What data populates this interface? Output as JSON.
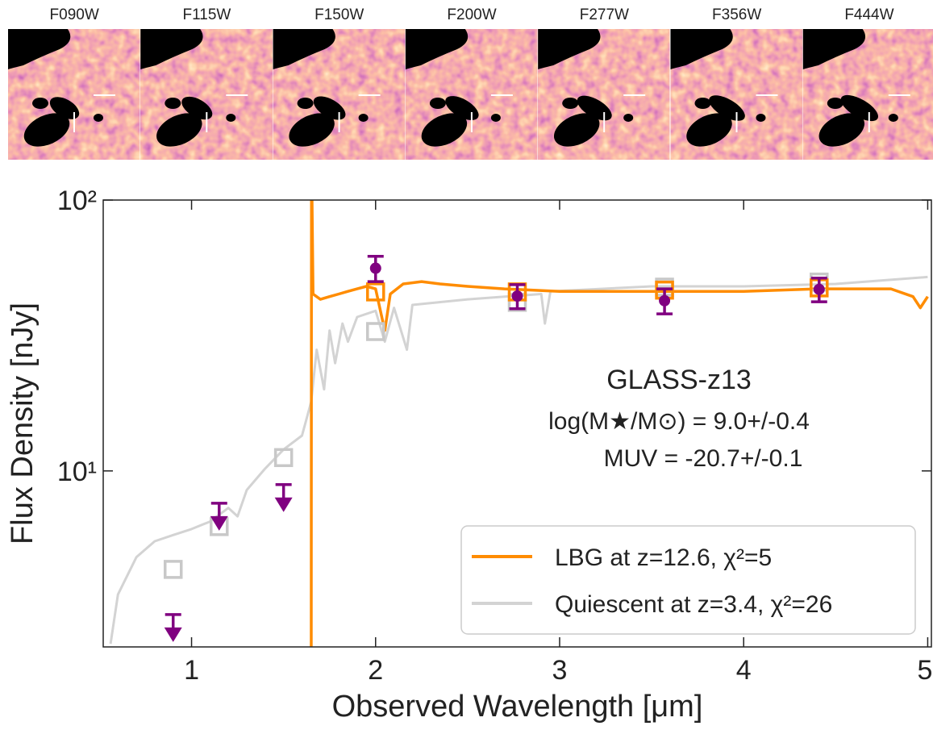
{
  "stamps": {
    "filters": [
      "F090W",
      "F115W",
      "F150W",
      "F200W",
      "F277W",
      "F356W",
      "F444W"
    ]
  },
  "chart_data": {
    "type": "line",
    "xlabel": "Observed Wavelength [μm]",
    "ylabel": "Flux Density [nJy]",
    "xlim": [
      0.52,
      5.02
    ],
    "xticks": [
      1,
      2,
      3,
      4,
      5
    ],
    "ylim": [
      2.24,
      100
    ],
    "log_y": true,
    "yticks": [
      {
        "value": 10,
        "label": "10¹"
      },
      {
        "value": 100,
        "label": "10²"
      }
    ],
    "annotations": [
      "GLASS-z13",
      "log(M★/M⊙) = 9.0+/-0.4",
      "MUV = -20.7+/-0.1"
    ],
    "legend": "lower right",
    "series": [
      {
        "name": "LBG at z=12.6, χ²=5",
        "color": "#ff8c00",
        "x": [
          1.65,
          1.652,
          1.66,
          1.7,
          1.75,
          1.8,
          1.85,
          1.9,
          1.95,
          2.0,
          2.03,
          2.05,
          2.08,
          2.15,
          2.25,
          2.35,
          2.5,
          2.7,
          3.0,
          3.3,
          3.6,
          4.0,
          4.4,
          4.8,
          4.92,
          4.96,
          5.0
        ],
        "values": [
          1.0,
          150,
          45,
          43,
          44,
          45,
          46,
          47,
          48,
          47,
          38,
          33,
          45,
          49,
          50,
          49,
          48,
          47,
          46,
          46,
          46,
          46,
          47,
          47,
          44,
          40,
          44
        ]
      },
      {
        "name": "Quiescent at z=3.4, χ²=26",
        "color": "#d3d3d3",
        "x": [
          0.56,
          0.6,
          0.7,
          0.8,
          0.9,
          1.0,
          1.1,
          1.2,
          1.25,
          1.3,
          1.4,
          1.5,
          1.6,
          1.65,
          1.68,
          1.72,
          1.75,
          1.78,
          1.82,
          1.85,
          1.9,
          2.0,
          2.05,
          2.1,
          2.17,
          2.2,
          2.5,
          2.9,
          2.92,
          2.95,
          3.5,
          4.0,
          4.5,
          5.0
        ],
        "values": [
          2.3,
          3.5,
          4.8,
          5.5,
          5.8,
          6.1,
          6.5,
          7.3,
          6.8,
          8.5,
          10.2,
          12.0,
          13.5,
          18,
          28,
          20,
          33,
          25,
          35,
          30,
          37,
          39,
          30,
          40,
          28,
          41,
          43,
          45,
          35,
          46,
          48,
          48,
          49,
          52
        ]
      }
    ],
    "photometry": {
      "color": "#800080",
      "x": [
        2.0,
        2.77,
        3.57,
        4.41
      ],
      "values": [
        56,
        44.2,
        42.5,
        46.8
      ],
      "errors": [
        6,
        4.5,
        4.5,
        4.7
      ]
    },
    "upper_limits": {
      "color": "#800080",
      "x": [
        0.9,
        1.15,
        1.5
      ],
      "values": [
        2.95,
        7.6,
        8.9
      ]
    },
    "model_points": [
      {
        "color": "#c8c8c8",
        "x": [
          0.9,
          1.15,
          1.5,
          2.0,
          2.77,
          3.57,
          4.41
        ],
        "values": [
          4.33,
          6.23,
          11.2,
          32.7,
          41.9,
          47.7,
          49.8
        ]
      },
      {
        "color": "#ff8c00",
        "x": [
          2.0,
          2.77,
          3.57,
          4.41
        ],
        "values": [
          45.8,
          45.8,
          46.5,
          47.4
        ]
      }
    ]
  }
}
